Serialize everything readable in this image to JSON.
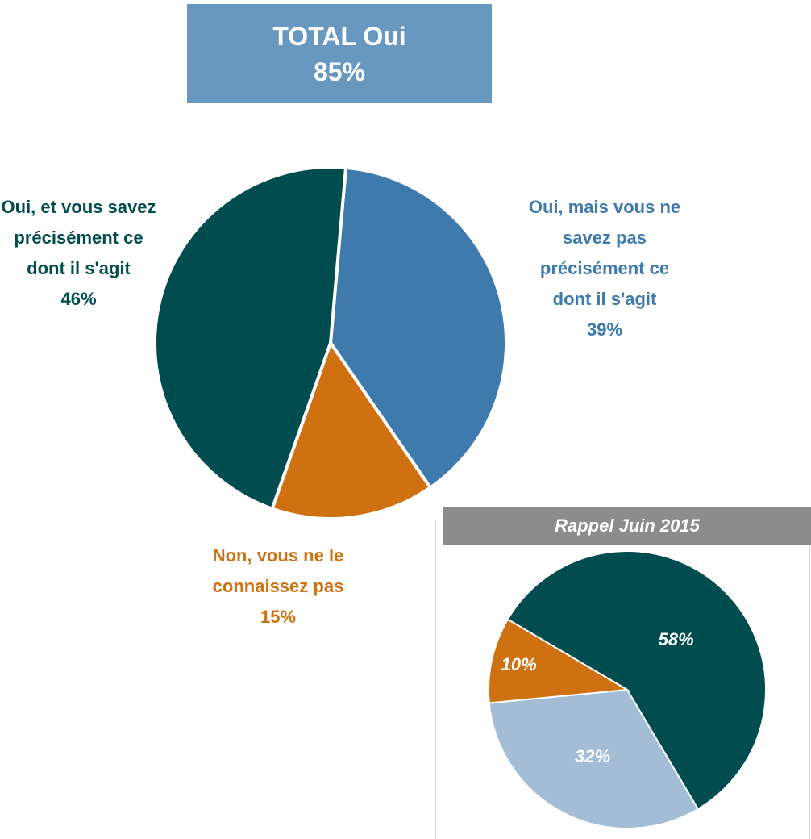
{
  "header": {
    "title": "TOTAL Oui",
    "value_label": "85%"
  },
  "chart_data": [
    {
      "type": "pie",
      "categories": [
        "Oui, mais vous ne savez pas précisément ce dont il s'agit",
        "Non, vous ne le connaissez pas",
        "Oui, et vous savez précisément ce dont il s'agit"
      ],
      "values": [
        39,
        15,
        46
      ],
      "value_labels": [
        "39%",
        "15%",
        "46%"
      ],
      "colors": [
        "#3f7aad",
        "#d07111",
        "#004c4f"
      ]
    },
    {
      "type": "pie",
      "title": "Rappel Juin 2015",
      "values": [
        58,
        32,
        10
      ],
      "value_labels": [
        "58%",
        "32%",
        "10%"
      ],
      "colors": [
        "#004c4f",
        "#a3bdd6",
        "#d07111"
      ]
    }
  ]
}
